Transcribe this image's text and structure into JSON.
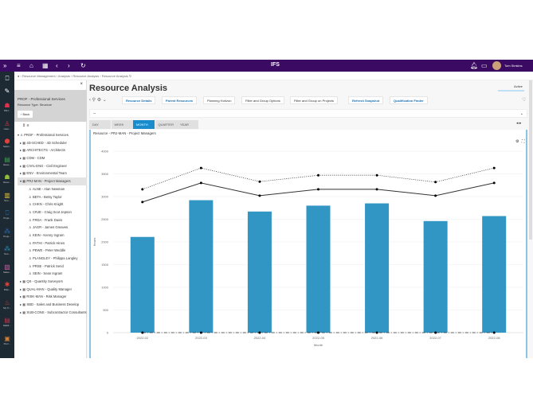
{
  "topbar": {
    "logo": "IFS",
    "user": "Tom Simkins"
  },
  "rail": [
    "PRJ...",
    "User...",
    "Selec...",
    "Reso...",
    "Reso...",
    "Sun...",
    "Proje...",
    "Proje...",
    "Sun...",
    "Sales...",
    "Risk...",
    "My Ti...",
    "DERI...",
    "Purc..."
  ],
  "breadcrumb": "Resource Management › Analysis › Resource Analysis › Resource Analysis",
  "side": {
    "title": "PROF - Professional Services",
    "type_label": "Resource Type:",
    "type_value": "Structure",
    "back": "Back",
    "tree": [
      {
        "label": "PROF - Professional Services",
        "level": 0,
        "exp": "▾",
        "icon": "♙"
      },
      {
        "label": "4D-SCHED - 4D Scheduler",
        "level": 1,
        "exp": "▸",
        "icon": "▦"
      },
      {
        "label": "ARCHITECTS - Architects",
        "level": 1,
        "exp": "▸",
        "icon": "▦"
      },
      {
        "label": "CDM - CDM",
        "level": 1,
        "exp": "▸",
        "icon": "▦"
      },
      {
        "label": "CIVIL-ENG - Civil Engineer",
        "level": 1,
        "exp": "▸",
        "icon": "▦"
      },
      {
        "label": "ENV - Environmental Team",
        "level": 1,
        "exp": "▸",
        "icon": "▦"
      },
      {
        "label": "PRJ-MAN - Project Managers",
        "level": 1,
        "exp": "▾",
        "icon": "▦",
        "selected": true
      },
      {
        "label": "ALNE - Alan Newman",
        "level": 2,
        "icon": "♙"
      },
      {
        "label": "BETA - Betsy Taylor",
        "level": 2,
        "icon": "♙"
      },
      {
        "label": "CHKN - Chris Knight",
        "level": 2,
        "icon": "♙"
      },
      {
        "label": "CRJE - Craig Scot Jepson",
        "level": 2,
        "icon": "♙"
      },
      {
        "label": "FRDA - Frank Davis",
        "level": 2,
        "icon": "♙"
      },
      {
        "label": "JAGR - James Greaves",
        "level": 2,
        "icon": "♙"
      },
      {
        "label": "KEIN - Kenny Ingram",
        "level": 2,
        "icon": "♙"
      },
      {
        "label": "PATHI - Patrick Hines",
        "level": 2,
        "icon": "♙"
      },
      {
        "label": "PEWE - Peter Weddle",
        "level": 2,
        "icon": "♙"
      },
      {
        "label": "PLANGLEY - Philippa Langley",
        "level": 2,
        "icon": "♙"
      },
      {
        "label": "PRSE - Patrick Send",
        "level": 2,
        "icon": "♙"
      },
      {
        "label": "SEIN - Sean Ingram",
        "level": 2,
        "icon": "♙"
      },
      {
        "label": "QS - Quantity Surveyors",
        "level": 1,
        "exp": "▸",
        "icon": "▦"
      },
      {
        "label": "QUAL-MAN - Quality Manager",
        "level": 1,
        "exp": "▸",
        "icon": "▦"
      },
      {
        "label": "RISK-MAN - Risk Manager",
        "level": 1,
        "exp": "▸",
        "icon": "▦"
      },
      {
        "label": "SBD - Sales and Business Develop",
        "level": 1,
        "exp": "▸",
        "icon": "▦"
      },
      {
        "label": "SUB-CONS - Subcontractor Consultants",
        "level": 1,
        "exp": "▸",
        "icon": "▦"
      }
    ]
  },
  "main": {
    "title": "Resource Analysis",
    "status": "Active",
    "filter": "--",
    "buttons": [
      {
        "label": "Resource Details",
        "link": true
      },
      {
        "label": "Parent Resources",
        "link": true
      },
      {
        "label": "Planning Horizon"
      },
      {
        "label": "Filter and Group Options"
      },
      {
        "label": "Filter and Group on Projects"
      },
      {
        "label": "Refresh Snapshot",
        "link": true
      },
      {
        "label": "Qualification Finder",
        "link": true
      }
    ],
    "tabs": [
      "DAY",
      "WEEK",
      "MONTH",
      "QUARTER",
      "YEAR"
    ],
    "active_tab": "MONTH",
    "panel_title": "Resource - PRJ-MAN - Project Managers"
  },
  "chart_data": {
    "type": "bar",
    "xlabel": "Month",
    "ylabel": "Hours",
    "ylim": [
      0,
      4000
    ],
    "yticks": [
      0,
      500,
      1000,
      1500,
      2000,
      2500,
      3000,
      3500,
      4000
    ],
    "grid": true,
    "categories": [
      "2022-02",
      "2022-03",
      "2022-04",
      "2022-05",
      "2022-06",
      "2022-07",
      "2022-08"
    ],
    "series": [
      {
        "type": "bar",
        "color": "#3196c3",
        "values": [
          2110,
          2920,
          2670,
          2800,
          2850,
          2460,
          2570
        ]
      },
      {
        "type": "line",
        "style": "solid",
        "color": "#333333",
        "values": [
          2880,
          3300,
          3020,
          3160,
          3160,
          3020,
          3300
        ]
      },
      {
        "type": "line",
        "style": "dotted",
        "color": "#333333",
        "values": [
          3160,
          3630,
          3330,
          3470,
          3470,
          3320,
          3630
        ]
      },
      {
        "type": "line",
        "style": "dashdot",
        "color": "#333333",
        "values": [
          0,
          0,
          0,
          0,
          0,
          0,
          0
        ]
      }
    ]
  }
}
